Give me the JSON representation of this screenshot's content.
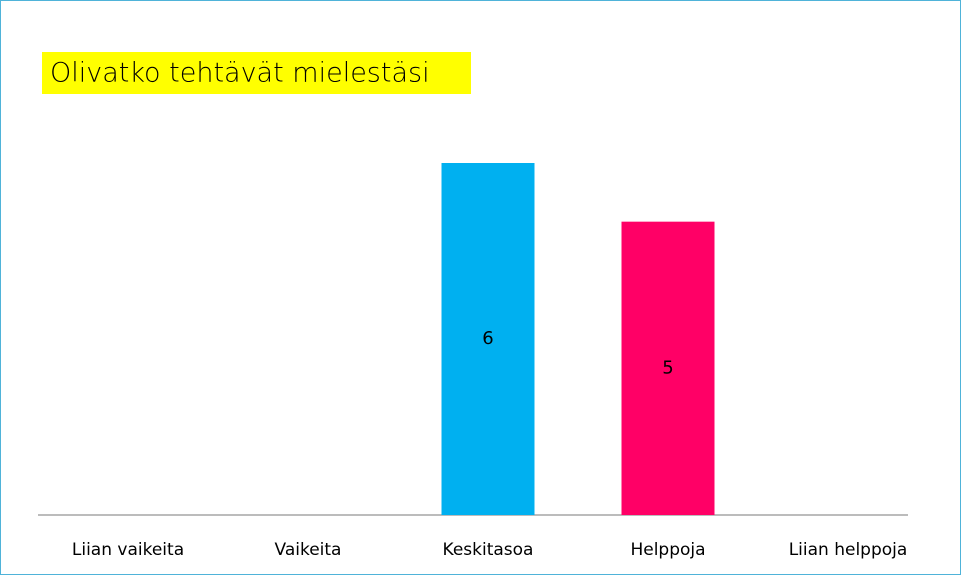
{
  "chart_data": {
    "type": "bar",
    "title": "Olivatko tehtävät mielestäsi",
    "categories": [
      "Liian vaikeita",
      "Vaikeita",
      "Keskitasoa",
      "Helppoja",
      "Liian helppoja"
    ],
    "values": [
      null,
      null,
      6,
      5,
      null
    ],
    "colors": [
      null,
      null,
      "#00b0f0",
      "#ff0066",
      null
    ],
    "ylim": [
      0,
      6
    ]
  }
}
